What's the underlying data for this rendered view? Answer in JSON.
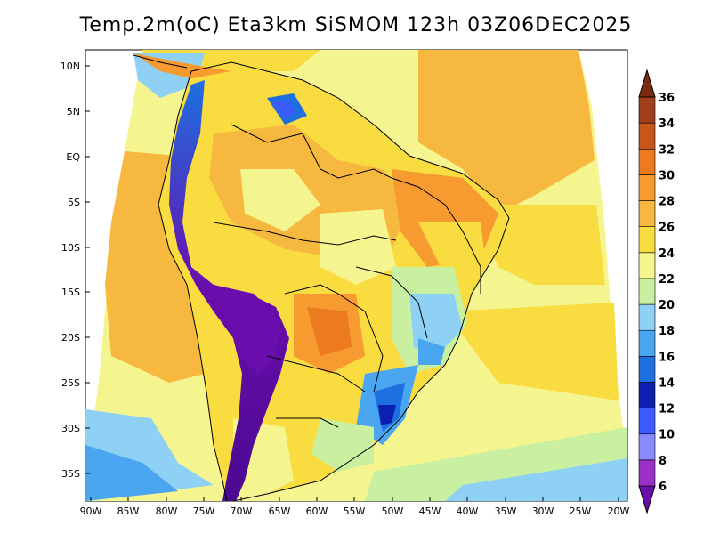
{
  "title": "Temp.2m(oC) Eta3km SiSMOM 123h 03Z06DEC2025",
  "map": {
    "lat_ticks": [
      "10N",
      "5N",
      "EQ",
      "5S",
      "10S",
      "15S",
      "20S",
      "25S",
      "30S",
      "35S"
    ],
    "lon_ticks": [
      "90W",
      "85W",
      "80W",
      "75W",
      "70W",
      "65W",
      "60W",
      "55W",
      "50W",
      "45W",
      "40W",
      "35W",
      "30W",
      "25W",
      "20W"
    ]
  },
  "colorbar": {
    "labels": [
      "6",
      "8",
      "10",
      "12",
      "14",
      "16",
      "18",
      "20",
      "22",
      "24",
      "26",
      "28",
      "30",
      "32",
      "34",
      "36"
    ],
    "colors": [
      "#6a0dad",
      "#9b30c8",
      "#8a8aff",
      "#3b5bff",
      "#0b1fb0",
      "#1e6fe0",
      "#4aa6f0",
      "#8fd0f5",
      "#c8f0a0",
      "#f5f590",
      "#f8dc40",
      "#f7b840",
      "#f79a30",
      "#ec7a1e",
      "#c8561a",
      "#a0401a",
      "#7a2a10"
    ]
  }
}
